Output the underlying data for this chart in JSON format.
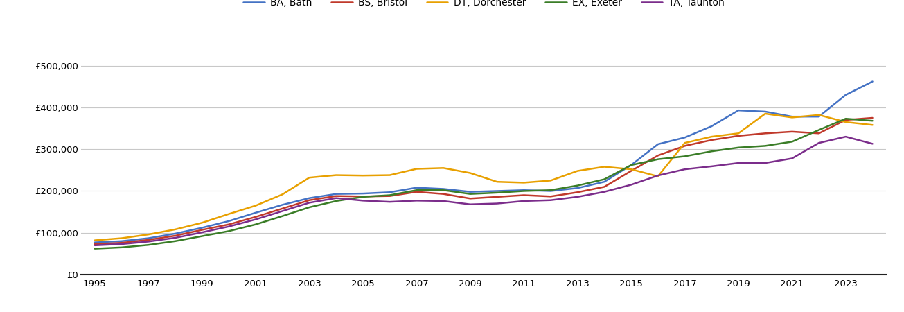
{
  "years": [
    1995,
    1996,
    1997,
    1998,
    1999,
    2000,
    2001,
    2002,
    2003,
    2004,
    2005,
    2006,
    2007,
    2008,
    2009,
    2010,
    2011,
    2012,
    2013,
    2014,
    2015,
    2016,
    2017,
    2018,
    2019,
    2020,
    2021,
    2022,
    2023,
    2024
  ],
  "BA_Bath": [
    77000,
    80000,
    87000,
    98000,
    112000,
    128000,
    148000,
    167000,
    183000,
    193000,
    194000,
    197000,
    208000,
    205000,
    198000,
    200000,
    202000,
    200000,
    207000,
    222000,
    262000,
    312000,
    328000,
    355000,
    393000,
    390000,
    378000,
    378000,
    430000,
    462000
  ],
  "BS_Bristol": [
    73000,
    76000,
    83000,
    93000,
    107000,
    120000,
    138000,
    158000,
    178000,
    188000,
    187000,
    188000,
    198000,
    193000,
    182000,
    186000,
    190000,
    187000,
    197000,
    210000,
    248000,
    285000,
    308000,
    322000,
    332000,
    338000,
    342000,
    338000,
    370000,
    375000
  ],
  "DT_Dorchester": [
    82000,
    87000,
    96000,
    108000,
    124000,
    145000,
    165000,
    192000,
    232000,
    238000,
    237000,
    238000,
    253000,
    255000,
    243000,
    222000,
    220000,
    225000,
    248000,
    258000,
    252000,
    235000,
    315000,
    330000,
    338000,
    385000,
    376000,
    382000,
    365000,
    358000
  ],
  "EX_Exeter": [
    62000,
    65000,
    71000,
    80000,
    92000,
    104000,
    120000,
    140000,
    161000,
    176000,
    186000,
    190000,
    202000,
    202000,
    193000,
    196000,
    200000,
    202000,
    213000,
    228000,
    262000,
    276000,
    283000,
    295000,
    304000,
    308000,
    318000,
    346000,
    373000,
    368000
  ],
  "TA_Taunton": [
    70000,
    73000,
    79000,
    88000,
    101000,
    115000,
    132000,
    152000,
    172000,
    183000,
    177000,
    174000,
    177000,
    176000,
    168000,
    170000,
    176000,
    178000,
    186000,
    198000,
    215000,
    237000,
    252000,
    259000,
    267000,
    267000,
    278000,
    315000,
    330000,
    313000
  ],
  "colors": {
    "BA_Bath": "#4472c4",
    "BS_Bristol": "#c0392b",
    "DT_Dorchester": "#e8a000",
    "EX_Exeter": "#3a7d27",
    "TA_Taunton": "#7b2d8b"
  },
  "legend_labels": {
    "BA_Bath": "BA, Bath",
    "BS_Bristol": "BS, Bristol",
    "DT_Dorchester": "DT, Dorchester",
    "EX_Exeter": "EX, Exeter",
    "TA_Taunton": "TA, Taunton"
  },
  "background_color": "#ffffff",
  "grid_color": "#c8c8c8",
  "ylim": [
    0,
    560000
  ],
  "yticks": [
    0,
    100000,
    200000,
    300000,
    400000,
    500000
  ],
  "xlim_min": 1994.5,
  "xlim_max": 2024.5
}
